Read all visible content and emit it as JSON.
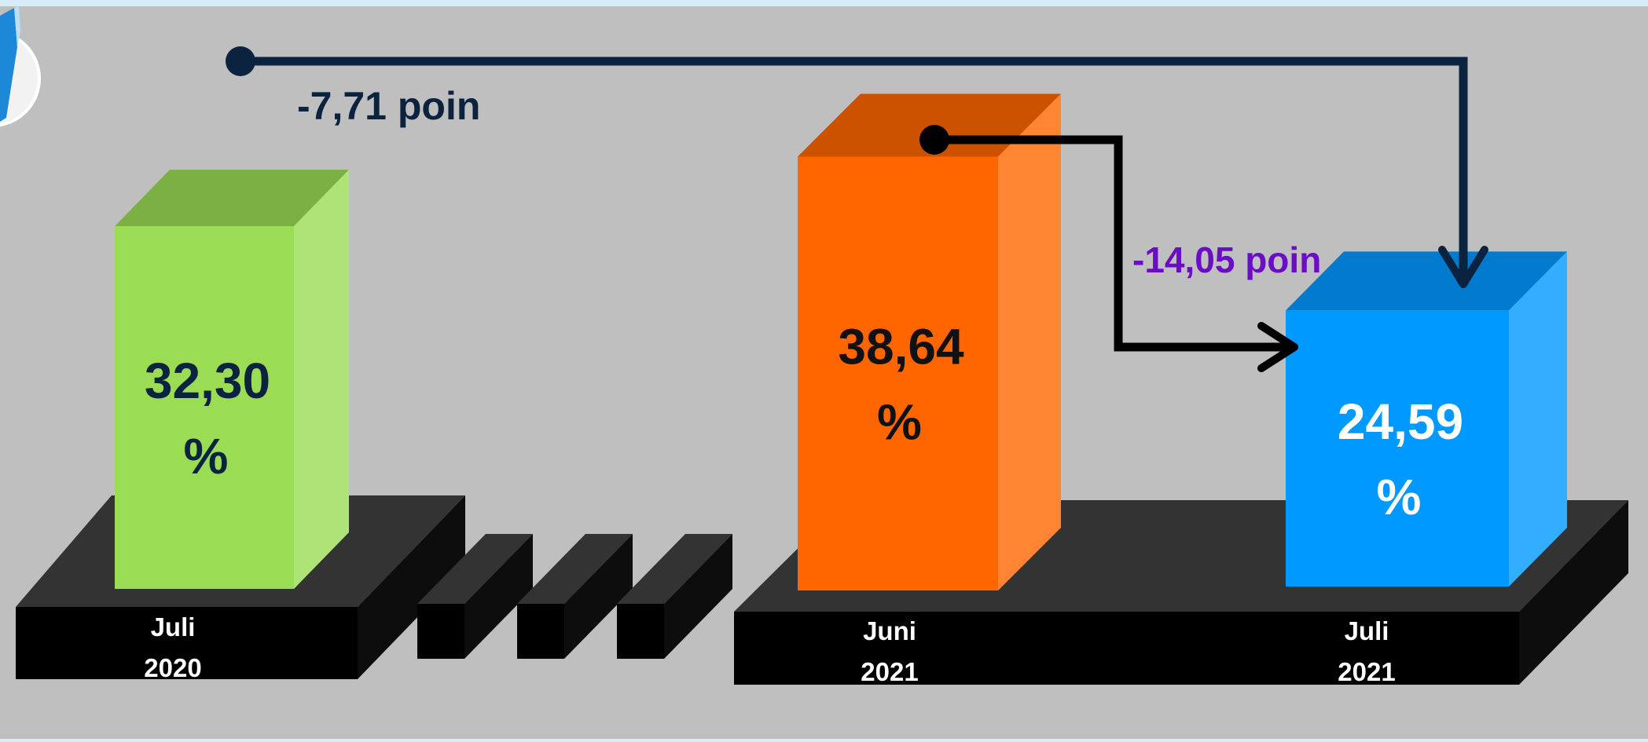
{
  "chart_data": {
    "type": "bar",
    "style": "3d-columns",
    "categories": [
      "Juli 2020",
      "Juni 2021",
      "Juli 2021"
    ],
    "values": [
      32.3,
      38.64,
      24.59
    ],
    "value_labels": [
      "32,30 %",
      "38,64 %",
      "24,59 %"
    ],
    "category_labels": [
      {
        "line1": "Juli",
        "line2": "2020"
      },
      {
        "line1": "Juni",
        "line2": "2021"
      },
      {
        "line1": "Juli",
        "line2": "2021"
      }
    ],
    "bar_colors": [
      "#9ADD55",
      "#FF6600",
      "#0099FF"
    ],
    "value_label_colors": [
      "#0C2340",
      "#111111",
      "#FFFFFF"
    ],
    "annotations": [
      {
        "text": "-7,71 poin",
        "from": "Juli 2020",
        "to": "Juli 2021",
        "color": "#0C2340"
      },
      {
        "text": "-14,05 poin",
        "from": "Juni 2021",
        "to": "Juli 2021",
        "color": "#6A0DC4"
      }
    ],
    "axis_break": true,
    "ylim": [
      0,
      40
    ],
    "grid": false,
    "legend": "none"
  },
  "colors": {
    "background": "#BFBFBF",
    "platform_top": "#333333",
    "platform_front": "#000000"
  }
}
